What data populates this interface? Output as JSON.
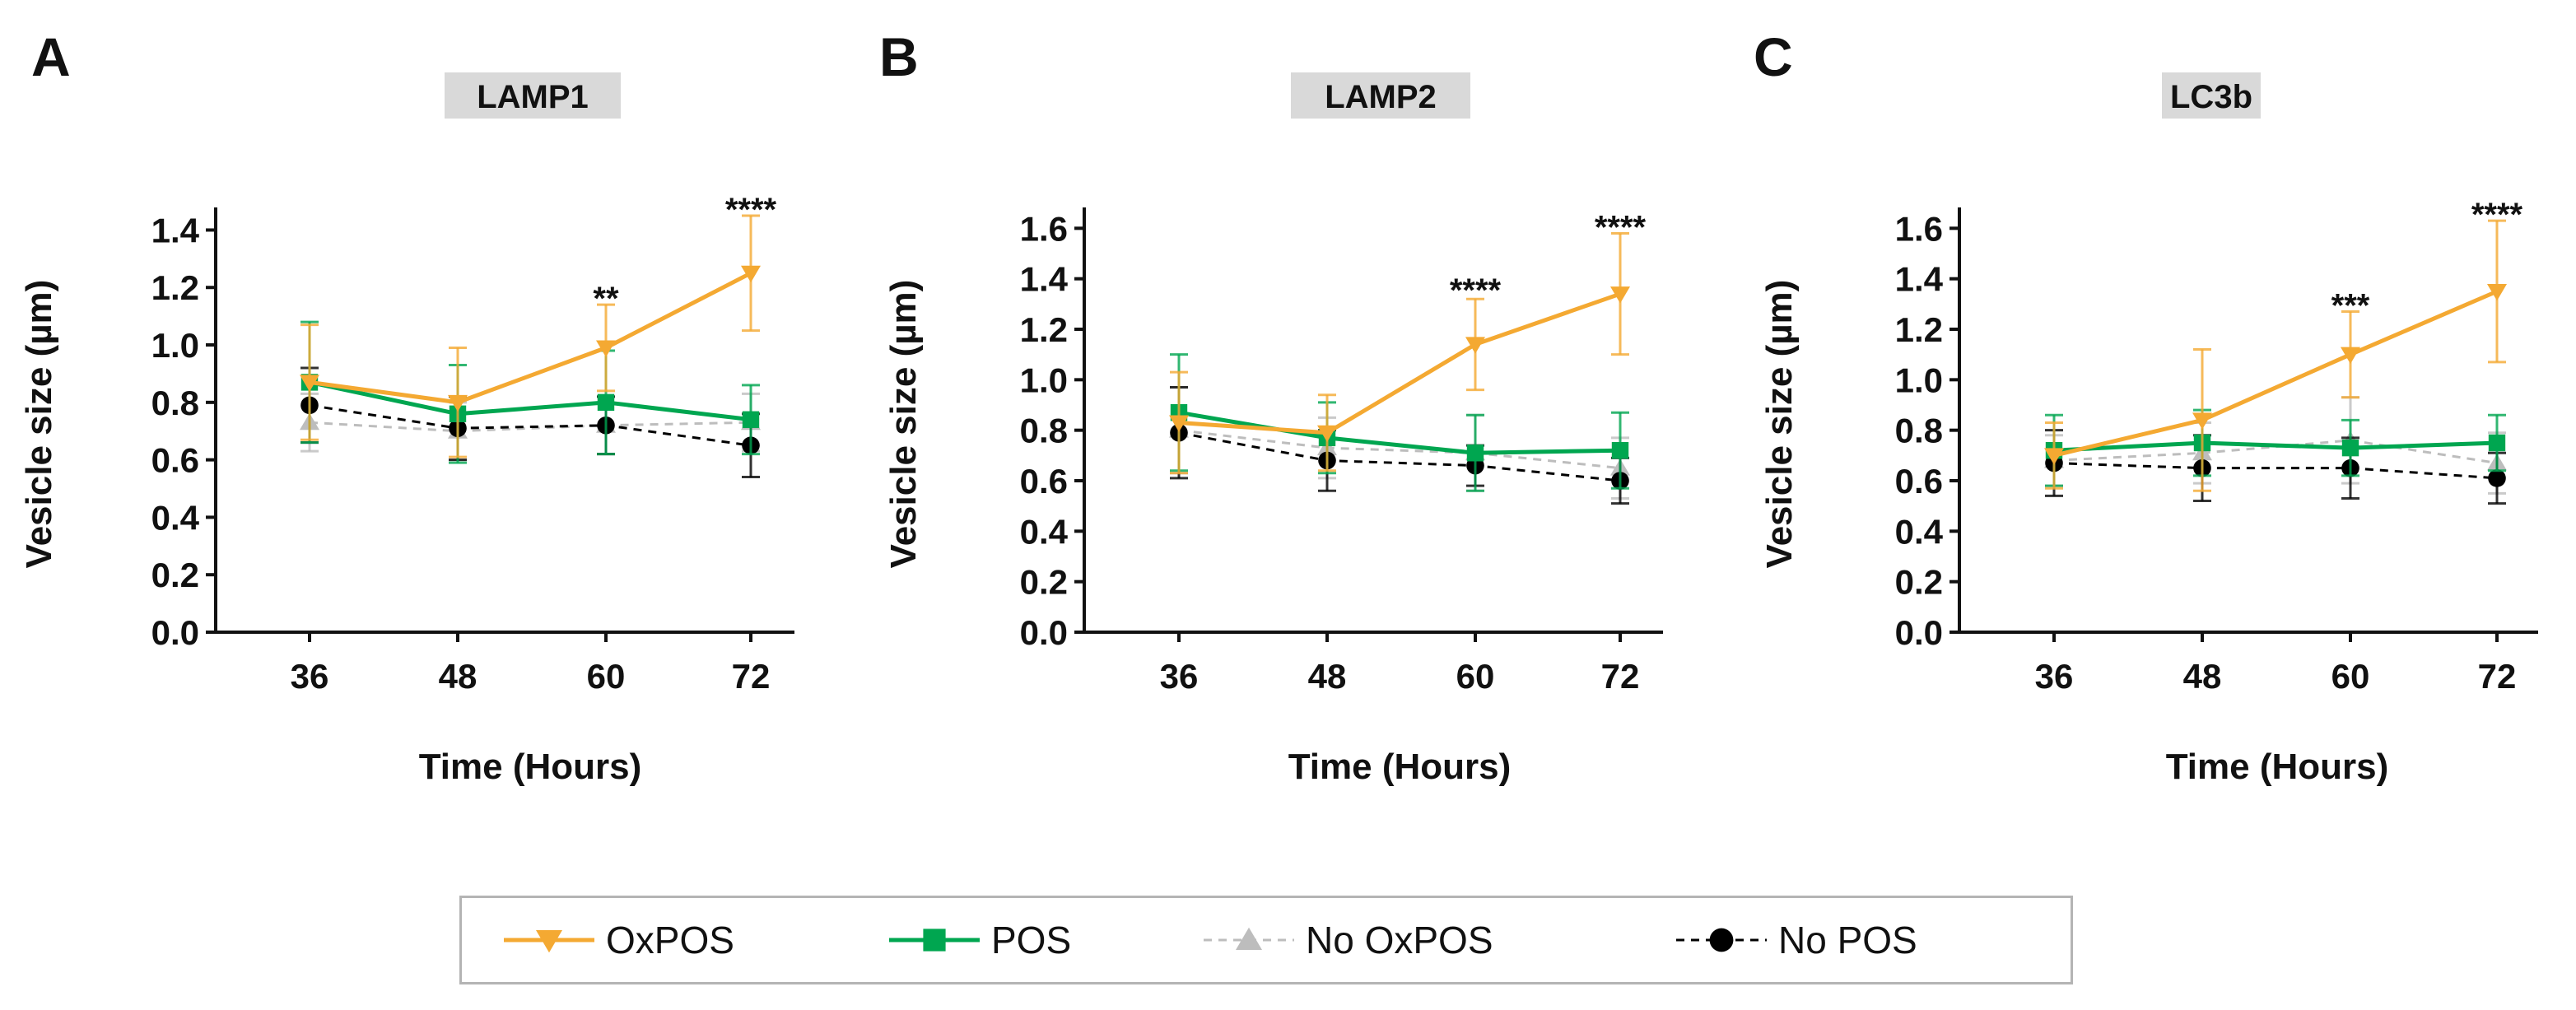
{
  "legend": {
    "items": [
      {
        "label": "OxPOS",
        "color": "#F4A932",
        "marker": "triangle-down",
        "dash": "solid"
      },
      {
        "label": "POS",
        "color": "#00A650",
        "marker": "square",
        "dash": "solid"
      },
      {
        "label": "No OxPOS",
        "color": "#BDBDBD",
        "marker": "triangle-up",
        "dash": "dashed"
      },
      {
        "label": "No POS",
        "color": "#000000",
        "marker": "circle",
        "dash": "dashed"
      }
    ]
  },
  "chart_data": [
    {
      "type": "line",
      "panel": "A",
      "title": "LAMP1",
      "xlabel": "Time (Hours)",
      "ylabel": "Vesicle size (µm)",
      "x": [
        36,
        48,
        60,
        72
      ],
      "yticks": [
        "0.0",
        "0.2",
        "0.4",
        "0.6",
        "0.8",
        "1.0",
        "1.2",
        "1.4"
      ],
      "ylim": [
        0,
        1.45
      ],
      "series": [
        {
          "name": "OxPOS",
          "values": [
            0.87,
            0.8,
            0.99,
            1.25
          ],
          "err": [
            0.2,
            0.19,
            0.15,
            0.2
          ]
        },
        {
          "name": "POS",
          "values": [
            0.87,
            0.76,
            0.8,
            0.74
          ],
          "err": [
            0.21,
            0.17,
            0.18,
            0.12
          ]
        },
        {
          "name": "No OxPOS",
          "values": [
            0.73,
            0.7,
            0.72,
            0.73
          ],
          "err": [
            0.1,
            0.1,
            0.1,
            0.1
          ]
        },
        {
          "name": "No POS",
          "values": [
            0.79,
            0.71,
            0.72,
            0.65
          ],
          "err": [
            0.13,
            0.11,
            0.1,
            0.11
          ]
        }
      ],
      "annotations": [
        {
          "x": 60,
          "text": "**",
          "y": 1.14
        },
        {
          "x": 72,
          "text": "****",
          "y": 1.45
        }
      ]
    },
    {
      "type": "line",
      "panel": "B",
      "title": "LAMP2",
      "xlabel": "Time (Hours)",
      "ylabel": "Vesicle size (µm)",
      "x": [
        36,
        48,
        60,
        72
      ],
      "yticks": [
        "0.0",
        "0.2",
        "0.4",
        "0.6",
        "0.8",
        "1.0",
        "1.2",
        "1.4",
        "1.6"
      ],
      "ylim": [
        0,
        1.65
      ],
      "series": [
        {
          "name": "OxPOS",
          "values": [
            0.83,
            0.79,
            1.14,
            1.34
          ],
          "err": [
            0.2,
            0.15,
            0.18,
            0.24
          ]
        },
        {
          "name": "POS",
          "values": [
            0.87,
            0.77,
            0.71,
            0.72
          ],
          "err": [
            0.23,
            0.14,
            0.15,
            0.15
          ]
        },
        {
          "name": "No OxPOS",
          "values": [
            0.8,
            0.73,
            0.71,
            0.65
          ],
          "err": [
            0.17,
            0.12,
            0.15,
            0.12
          ]
        },
        {
          "name": "No POS",
          "values": [
            0.79,
            0.68,
            0.66,
            0.6
          ],
          "err": [
            0.18,
            0.12,
            0.08,
            0.09
          ]
        }
      ],
      "annotations": [
        {
          "x": 60,
          "text": "****",
          "y": 1.33
        },
        {
          "x": 72,
          "text": "****",
          "y": 1.58
        }
      ]
    },
    {
      "type": "line",
      "panel": "C",
      "title": "LC3b",
      "xlabel": "Time (Hours)",
      "ylabel": "Vesicle size (µm)",
      "x": [
        36,
        48,
        60,
        72
      ],
      "yticks": [
        "0.0",
        "0.2",
        "0.4",
        "0.6",
        "0.8",
        "1.0",
        "1.2",
        "1.4",
        "1.6"
      ],
      "ylim": [
        0,
        1.65
      ],
      "series": [
        {
          "name": "OxPOS",
          "values": [
            0.7,
            0.84,
            1.1,
            1.35
          ],
          "err": [
            0.13,
            0.28,
            0.17,
            0.28
          ]
        },
        {
          "name": "POS",
          "values": [
            0.72,
            0.75,
            0.73,
            0.75
          ],
          "err": [
            0.14,
            0.13,
            0.11,
            0.11
          ]
        },
        {
          "name": "No OxPOS",
          "values": [
            0.68,
            0.71,
            0.76,
            0.67
          ],
          "err": [
            0.1,
            0.12,
            0.17,
            0.12
          ]
        },
        {
          "name": "No POS",
          "values": [
            0.67,
            0.65,
            0.65,
            0.61
          ],
          "err": [
            0.13,
            0.13,
            0.12,
            0.1
          ]
        }
      ],
      "annotations": [
        {
          "x": 60,
          "text": "***",
          "y": 1.27
        },
        {
          "x": 72,
          "text": "****",
          "y": 1.63
        }
      ]
    }
  ]
}
